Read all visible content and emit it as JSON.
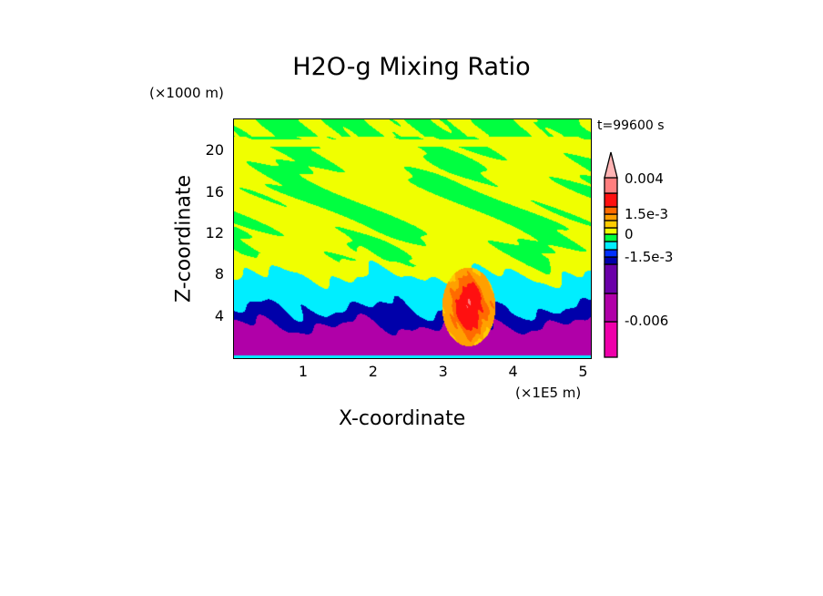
{
  "chart_data": {
    "type": "heatmap",
    "title": "H2O-g Mixing Ratio",
    "xlabel": "X-coordinate",
    "ylabel": "Z-coordinate",
    "x_multiplier": "(×1E5 m)",
    "y_multiplier": "(×1000 m)",
    "annotation": "t=99600 s",
    "xlim": [
      0,
      5.1
    ],
    "ylim": [
      0,
      23.1
    ],
    "xticks": [
      "1",
      "2",
      "3",
      "4",
      "5"
    ],
    "xtick_values": [
      1,
      2,
      3,
      4,
      5
    ],
    "yticks": [
      "4",
      "8",
      "12",
      "16",
      "20"
    ],
    "ytick_values": [
      4,
      8,
      12,
      16,
      20
    ],
    "colorbar": {
      "levels": [
        -0.008,
        -0.006,
        -0.004,
        -0.002,
        -0.0015,
        -0.001,
        -0.0005,
        0,
        0.0005,
        0.001,
        0.0015,
        0.002,
        0.003,
        0.004
      ],
      "colors": [
        "#ee00aa",
        "#b000a8",
        "#6a00a8",
        "#0000aa",
        "#0030ff",
        "#00eeff",
        "#00ff40",
        "#f0ff00",
        "#ffcc00",
        "#ffa000",
        "#ff6a00",
        "#ff1010",
        "#ff7f7f"
      ],
      "over_color": "#ffb4b4",
      "extend": "max",
      "tick_labels": [
        "0.004",
        "1.5e-3",
        "0",
        "-1.5e-3",
        "-0.006"
      ],
      "tick_values": [
        0.004,
        0.0015,
        0,
        -0.0015,
        -0.006
      ]
    }
  }
}
